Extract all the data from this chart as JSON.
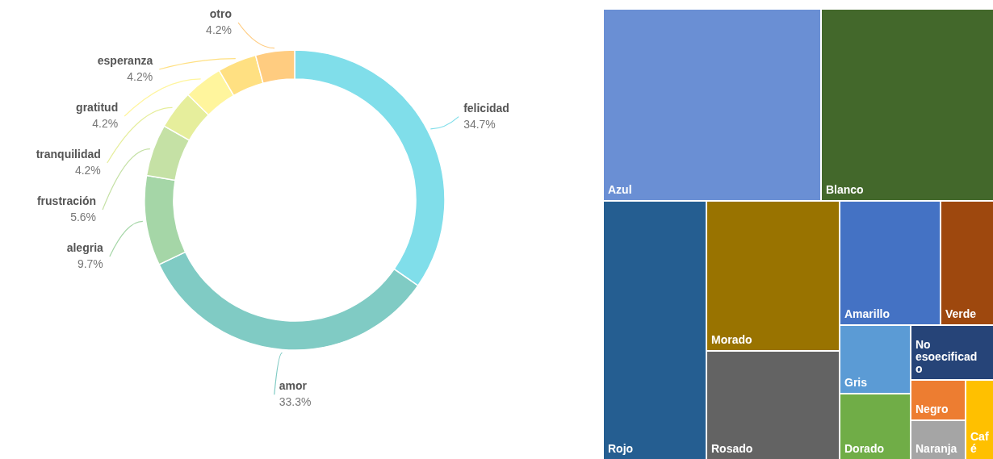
{
  "chart_data": [
    {
      "type": "donut",
      "categories": [
        "felicidad",
        "amor",
        "alegria",
        "frustración",
        "tranquilidad",
        "gratitud",
        "esperanza",
        "otro"
      ],
      "values": [
        34.7,
        33.3,
        9.7,
        5.6,
        4.2,
        4.2,
        4.2,
        4.2
      ],
      "value_labels": [
        "34.7%",
        "33.3%",
        "9.7%",
        "5.6%",
        "4.2%",
        "4.2%",
        "4.2%",
        "4.2%"
      ],
      "colors": [
        "#80deea",
        "#80cbc4",
        "#a5d6a7",
        "#c5e1a5",
        "#e6ee9c",
        "#fff59d",
        "#ffe082",
        "#ffcc80"
      ]
    },
    {
      "type": "other",
      "categories": [
        "Azul",
        "Blanco",
        "Rojo",
        "Morado",
        "Rosado",
        "Amarillo",
        "Verde",
        "Gris",
        "Dorado",
        "No esoecificado",
        "Naranja",
        "Negro",
        "Café"
      ],
      "colors": [
        "#6a8fd4",
        "#43682b",
        "#255e91",
        "#997300",
        "#636363",
        "#4472c4",
        "#9e480e",
        "#5b9bd5",
        "#70ad47",
        "#264478",
        "#a5a5a5",
        "#ed7d31",
        "#ffc000"
      ]
    }
  ]
}
